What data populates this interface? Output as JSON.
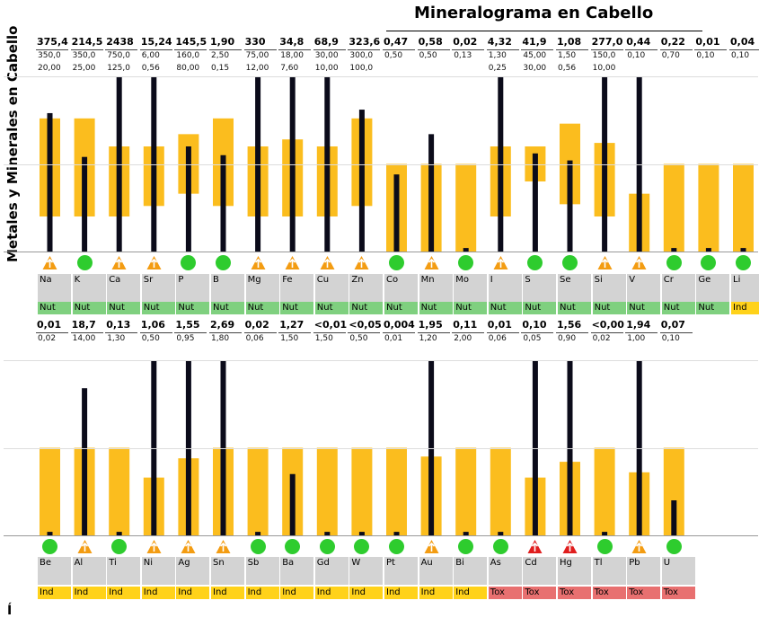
{
  "chart_data": {
    "type": "range-bar",
    "title": "Mineralograma en Cabello",
    "ylabel": "Metales y Minerales en Cabello",
    "rows": [
      {
        "elements": [
          {
            "symbol": "Na",
            "value": "375,4",
            "upper": "350,0",
            "lower": "20,00",
            "band": [
              0.2,
              0.76
            ],
            "bar": 0.79,
            "status": "high",
            "category": "Nut"
          },
          {
            "symbol": "K",
            "value": "214,5",
            "upper": "350,0",
            "lower": "25,00",
            "band": [
              0.2,
              0.76
            ],
            "bar": 0.54,
            "status": "ok",
            "category": "Nut"
          },
          {
            "symbol": "Ca",
            "value": "2438",
            "upper": "750,0",
            "lower": "125,0",
            "band": [
              0.2,
              0.6
            ],
            "bar": 1.0,
            "status": "high",
            "category": "Nut"
          },
          {
            "symbol": "Sr",
            "value": "15,24",
            "upper": "6,00",
            "lower": "0,56",
            "band": [
              0.26,
              0.6
            ],
            "bar": 1.0,
            "status": "high",
            "category": "Nut"
          },
          {
            "symbol": "P",
            "value": "145,5",
            "upper": "160,0",
            "lower": "80,00",
            "band": [
              0.33,
              0.67
            ],
            "bar": 0.6,
            "status": "ok",
            "category": "Nut"
          },
          {
            "symbol": "B",
            "value": "1,90",
            "upper": "2,50",
            "lower": "0,15",
            "band": [
              0.26,
              0.76
            ],
            "bar": 0.55,
            "status": "ok",
            "category": "Nut"
          },
          {
            "symbol": "Mg",
            "value": "330",
            "upper": "75,00",
            "lower": "12,00",
            "band": [
              0.2,
              0.6
            ],
            "bar": 1.0,
            "status": "high",
            "category": "Nut"
          },
          {
            "symbol": "Fe",
            "value": "34,8",
            "upper": "18,00",
            "lower": "7,60",
            "band": [
              0.2,
              0.64
            ],
            "bar": 1.0,
            "status": "high",
            "category": "Nut"
          },
          {
            "symbol": "Cu",
            "value": "68,9",
            "upper": "30,00",
            "lower": "10,00",
            "band": [
              0.2,
              0.6
            ],
            "bar": 1.0,
            "status": "high",
            "category": "Nut"
          },
          {
            "symbol": "Zn",
            "value": "323,6",
            "upper": "300,0",
            "lower": "100,0",
            "band": [
              0.26,
              0.76
            ],
            "bar": 0.81,
            "status": "high",
            "category": "Nut"
          },
          {
            "symbol": "Co",
            "value": "0,47",
            "upper": "0,50",
            "lower": "",
            "band": [
              0.0,
              0.5
            ],
            "bar": 0.44,
            "status": "ok",
            "category": "Nut"
          },
          {
            "symbol": "Mn",
            "value": "0,58",
            "upper": "0,50",
            "lower": "",
            "band": [
              0.0,
              0.5
            ],
            "bar": 0.67,
            "status": "high",
            "category": "Nut"
          },
          {
            "symbol": "Mo",
            "value": "0,02",
            "upper": "0,13",
            "lower": "",
            "band": [
              0.0,
              0.5
            ],
            "bar": 0.02,
            "status": "ok",
            "category": "Nut"
          },
          {
            "symbol": "I",
            "value": "4,32",
            "upper": "1,30",
            "lower": "0,25",
            "band": [
              0.2,
              0.6
            ],
            "bar": 1.0,
            "status": "high",
            "category": "Nut"
          },
          {
            "symbol": "S",
            "value": "41,9",
            "upper": "45,00",
            "lower": "30,00",
            "band": [
              0.4,
              0.6
            ],
            "bar": 0.56,
            "status": "ok",
            "category": "Nut"
          },
          {
            "symbol": "Se",
            "value": "1,08",
            "upper": "1,50",
            "lower": "0,56",
            "band": [
              0.27,
              0.73
            ],
            "bar": 0.52,
            "status": "ok",
            "category": "Nut"
          },
          {
            "symbol": "Si",
            "value": "277,0",
            "upper": "150,0",
            "lower": "10,00",
            "band": [
              0.2,
              0.62
            ],
            "bar": 1.0,
            "status": "high",
            "category": "Nut"
          },
          {
            "symbol": "V",
            "value": "0,44",
            "upper": "0,10",
            "lower": "",
            "band": [
              0.0,
              0.33
            ],
            "bar": 1.0,
            "status": "high",
            "category": "Nut"
          },
          {
            "symbol": "Cr",
            "value": "0,22",
            "upper": "0,70",
            "lower": "",
            "band": [
              0.0,
              0.5
            ],
            "bar": 0.02,
            "status": "ok",
            "category": "Nut"
          },
          {
            "symbol": "Ge",
            "value": "0,01",
            "upper": "0,10",
            "lower": "",
            "band": [
              0.0,
              0.5
            ],
            "bar": 0.02,
            "status": "ok",
            "category": "Nut"
          },
          {
            "symbol": "Li",
            "value": "0,04",
            "upper": "0,10",
            "lower": "",
            "band": [
              0.0,
              0.5
            ],
            "bar": 0.02,
            "status": "ok",
            "category": "Ind"
          }
        ]
      },
      {
        "elements": [
          {
            "symbol": "Be",
            "value": "0,01",
            "upper": "0,02",
            "lower": "",
            "band": [
              0.0,
              0.5
            ],
            "bar": 0.02,
            "status": "ok",
            "category": "Ind"
          },
          {
            "symbol": "Al",
            "value": "18,7",
            "upper": "14,00",
            "lower": "",
            "band": [
              0.0,
              0.5
            ],
            "bar": 0.84,
            "status": "high",
            "category": "Ind"
          },
          {
            "symbol": "Ti",
            "value": "0,13",
            "upper": "1,30",
            "lower": "",
            "band": [
              0.0,
              0.5
            ],
            "bar": 0.02,
            "status": "ok",
            "category": "Ind"
          },
          {
            "symbol": "Ni",
            "value": "1,06",
            "upper": "0,50",
            "lower": "",
            "band": [
              0.0,
              0.33
            ],
            "bar": 1.0,
            "status": "high",
            "category": "Ind"
          },
          {
            "symbol": "Ag",
            "value": "1,55",
            "upper": "0,95",
            "lower": "",
            "band": [
              0.0,
              0.44
            ],
            "bar": 1.0,
            "status": "high",
            "category": "Ind"
          },
          {
            "symbol": "Sn",
            "value": "2,69",
            "upper": "1,80",
            "lower": "",
            "band": [
              0.0,
              0.5
            ],
            "bar": 1.0,
            "status": "high",
            "category": "Ind"
          },
          {
            "symbol": "Sb",
            "value": "0,02",
            "upper": "0,06",
            "lower": "",
            "band": [
              0.0,
              0.5
            ],
            "bar": 0.02,
            "status": "ok",
            "category": "Ind"
          },
          {
            "symbol": "Ba",
            "value": "1,27",
            "upper": "1,50",
            "lower": "",
            "band": [
              0.0,
              0.5
            ],
            "bar": 0.35,
            "status": "ok",
            "category": "Ind"
          },
          {
            "symbol": "Gd",
            "value": "<0,01",
            "upper": "1,50",
            "lower": "",
            "band": [
              0.0,
              0.5
            ],
            "bar": 0.02,
            "status": "ok",
            "category": "Ind"
          },
          {
            "symbol": "W",
            "value": "<0,05",
            "upper": "0,50",
            "lower": "",
            "band": [
              0.0,
              0.5
            ],
            "bar": 0.02,
            "status": "ok",
            "category": "Ind"
          },
          {
            "symbol": "Pt",
            "value": "0,004",
            "upper": "0,01",
            "lower": "",
            "band": [
              0.0,
              0.5
            ],
            "bar": 0.02,
            "status": "ok",
            "category": "Ind"
          },
          {
            "symbol": "Au",
            "value": "1,95",
            "upper": "1,20",
            "lower": "",
            "band": [
              0.0,
              0.45
            ],
            "bar": 1.0,
            "status": "high",
            "category": "Ind"
          },
          {
            "symbol": "Bi",
            "value": "0,11",
            "upper": "2,00",
            "lower": "",
            "band": [
              0.0,
              0.5
            ],
            "bar": 0.02,
            "status": "ok",
            "category": "Ind"
          },
          {
            "symbol": "As",
            "value": "0,01",
            "upper": "0,06",
            "lower": "",
            "band": [
              0.0,
              0.5
            ],
            "bar": 0.02,
            "status": "ok",
            "category": "Tox"
          },
          {
            "symbol": "Cd",
            "value": "0,10",
            "upper": "0,05",
            "lower": "",
            "band": [
              0.0,
              0.33
            ],
            "bar": 1.0,
            "status": "toxic",
            "category": "Tox"
          },
          {
            "symbol": "Hg",
            "value": "1,56",
            "upper": "0,90",
            "lower": "",
            "band": [
              0.0,
              0.42
            ],
            "bar": 1.0,
            "status": "toxic",
            "category": "Tox"
          },
          {
            "symbol": "Tl",
            "value": "<0,00",
            "upper": "0,02",
            "lower": "",
            "band": [
              0.0,
              0.5
            ],
            "bar": 0.02,
            "status": "ok",
            "category": "Tox"
          },
          {
            "symbol": "Pb",
            "value": "1,94",
            "upper": "1,00",
            "lower": "",
            "band": [
              0.0,
              0.36
            ],
            "bar": 1.0,
            "status": "high",
            "category": "Tox"
          },
          {
            "symbol": "U",
            "value": "0,07",
            "upper": "0,10",
            "lower": "",
            "band": [
              0.0,
              0.5
            ],
            "bar": 0.2,
            "status": "ok",
            "category": "Tox"
          }
        ]
      }
    ],
    "colors": {
      "band": "#fbbd1e",
      "bar": "#0b0b1a",
      "ok": "#2ecc2e",
      "high": "#f39c12",
      "toxic": "#e01e1e",
      "nut": "#7fd07f",
      "ind": "#ffd21a",
      "tox": "#e87070"
    }
  },
  "footer": "Í"
}
